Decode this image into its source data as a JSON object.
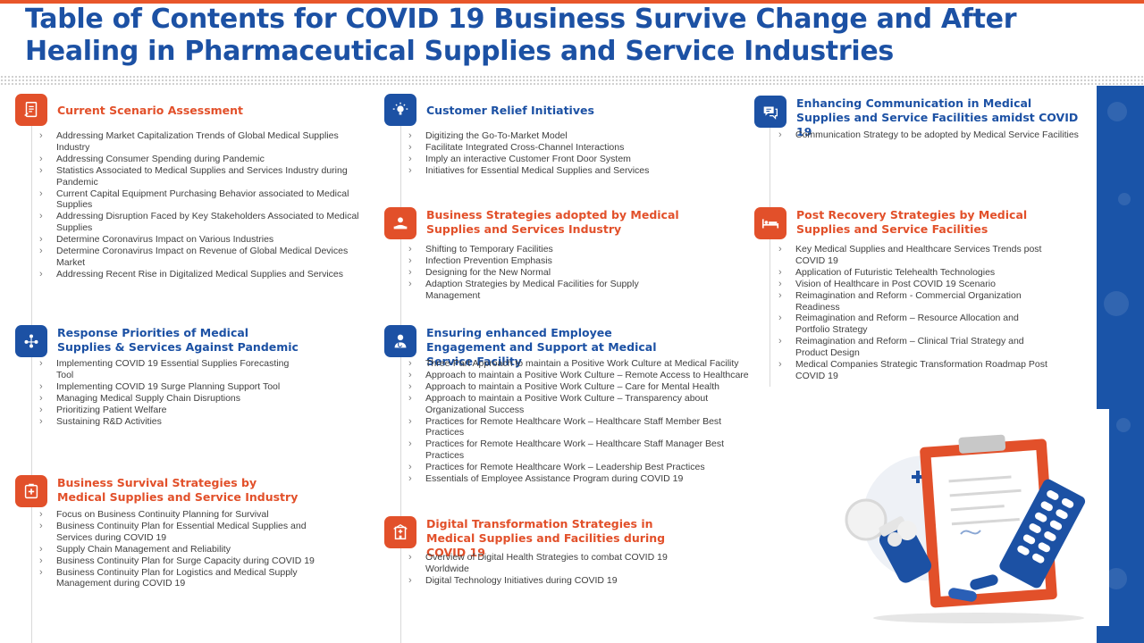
{
  "title": "Table of Contents for COVID 19 Business Survive Change and After Healing in Pharmaceutical Supplies and Service Industries",
  "sections": [
    {
      "title": "Current Scenario Assessment",
      "icon": "assessment-report-icon",
      "items": [
        "Addressing Market Capitalization  Trends of Global Medical Supplies Industry",
        "Addressing Consumer Spending during Pandemic",
        "Statistics Associated to Medical Supplies and Services Industry during Pandemic",
        "Current Capital Equipment  Purchasing Behavior associated to Medical Supplies",
        "Addressing Disruption Faced by Key Stakeholders Associated to Medical Supplies",
        "Determine Coronavirus Impact on Various Industries",
        "Determine Coronavirus Impact on Revenue of Global Medical Devices Market",
        "Addressing Recent Rise in Digitalized  Medical Supplies and Services"
      ]
    },
    {
      "title": "Response Priorities of Medical Supplies & Services Against Pandemic",
      "icon": "people-network-icon",
      "items": [
        "Implementing  COVID  19 Essential Supplies Forecasting Tool",
        "Implementing  COVID  19 Surge Planning  Support Tool",
        "Managing Medical Supply Chain Disruptions",
        "Prioritizing Patient Welfare",
        "Sustaining R&D  Activities"
      ]
    },
    {
      "title": "Business Survival Strategies by Medical Supplies and Service Industry",
      "icon": "medical-kit-icon",
      "items": [
        "Focus on Business Continuity Planning  for Survival",
        "Business Continuity Plan  for Essential Medical Supplies  and Services during COVID  19",
        "Supply Chain  Management  and Reliability",
        "Business Continuity Plan  for Surge Capacity during COVID  19",
        "Business Continuity Plan  for Logistics and Medical Supply Management  during COVID  19"
      ]
    },
    {
      "title": "Customer Relief Initiatives",
      "icon": "idea-bulb-icon",
      "items": [
        "Digitizing the Go-To-Market Model",
        "Facilitate Integrated Cross-Channel Interactions",
        "Imply  an interactive Customer Front Door System",
        "Initiatives  for Essential Medical Supplies  and Services"
      ]
    },
    {
      "title": "Business Strategies adopted by Medical Supplies and Services Industry",
      "icon": "hand-care-icon",
      "items": [
        "Shifting to Temporary Facilities",
        "Infection Prevention Emphasis",
        "Designing  for the New Normal",
        "Adaption Strategies by Medical Facilities for Supply Management"
      ]
    },
    {
      "title": "Ensuring enhanced Employee Engagement and Support at Medical Service Facility",
      "icon": "doctor-icon",
      "items": [
        "Three-Part Approach to maintain  a Positive Work Culture at Medical Facility",
        "Approach to maintain  a Positive Work Culture – Remote  Access to Healthcare",
        "Approach to maintain  a Positive Work Culture – Care for Mental Health",
        "Approach to maintain  a Positive Work Culture – Transparency about Organizational Success",
        "Practices for Remote Healthcare Work – Healthcare Staff Member Best Practices",
        "Practices for Remote Healthcare Work – Healthcare Staff Manager Best Practices",
        "Practices for Remote Healthcare Work – Leadership Best Practices",
        "Essentials of Employee Assistance Program during COVID  19"
      ]
    },
    {
      "title": "Digital Transformation Strategies in Medical Supplies and Facilities during COVID 19",
      "icon": "hospital-building-icon",
      "items": [
        "Overview of Digital Health Strategies to combat COVID  19 Worldwide",
        "Digital Technology Initiatives during COVID  19"
      ]
    },
    {
      "title": "Enhancing Communication in Medical Supplies and Service Facilities amidst COVID 19",
      "icon": "chat-bubbles-icon",
      "items": [
        "Communication  Strategy to be adopted by Medical Service Facilities"
      ]
    },
    {
      "title": "Post Recovery Strategies by Medical Supplies and Service Facilities",
      "icon": "hospital-bed-icon",
      "items": [
        "Key Medical Supplies and Healthcare Services Trends post COVID  19",
        "Application of Futuristic Telehealth Technologies",
        "Vision of Healthcare in Post COVID  19 Scenario",
        "Reimagination  and Reform - Commercial Organization Readiness",
        "Reimagination  and Reform – Resource Allocation and Portfolio Strategy",
        "Reimagination  and Reform – Clinical Trial Strategy and Product Design",
        "Medical Companies Strategic Transformation Roadmap Post COVID  19"
      ]
    }
  ],
  "colors": {
    "accent_orange": "#e2502a",
    "accent_blue": "#1c51a4",
    "top_stripe": "#e8562a"
  },
  "illustration": "clipboard-pills-medical-illustration"
}
